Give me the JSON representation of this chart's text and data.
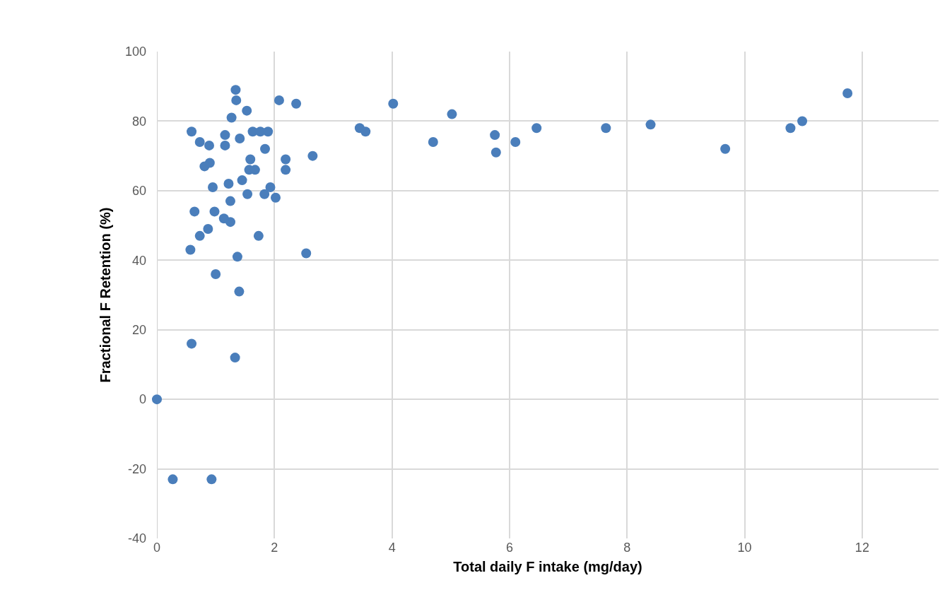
{
  "chart_data": {
    "type": "scatter",
    "xlabel": "Total daily F intake (mg/day)",
    "ylabel": "Fractional F Retention (%)",
    "x": [
      0,
      0.27,
      0.93,
      0.59,
      1.33,
      1.4,
      1.0,
      1.37,
      0.57,
      2.54,
      0.73,
      1.73,
      0.87,
      1.25,
      1.14,
      0.98,
      0.64,
      1.25,
      1.54,
      1.83,
      2.02,
      0.95,
      1.93,
      1.22,
      1.45,
      1.57,
      1.67,
      2.19,
      0.9,
      1.59,
      2.19,
      2.65,
      1.84,
      0.81,
      0.89,
      1.16,
      0.73,
      1.41,
      1.16,
      0.59,
      1.63,
      1.76,
      1.89,
      1.27,
      1.53,
      1.35,
      2.08,
      2.37,
      1.34,
      3.45,
      3.55,
      4.02,
      4.7,
      5.02,
      5.75,
      5.77,
      6.1,
      6.46,
      7.64,
      8.4,
      9.67,
      10.78,
      10.98,
      11.75
    ],
    "series": [
      {
        "color": "#4a7ebb",
        "values": [
          0,
          -23,
          -23,
          16,
          12,
          31,
          36,
          41,
          43,
          42,
          47,
          47,
          49,
          51,
          52,
          54,
          54,
          57,
          59,
          59,
          58,
          61,
          61,
          62,
          63,
          66,
          66,
          66,
          68,
          69,
          69,
          70,
          72,
          67,
          73,
          73,
          74,
          75,
          76,
          77,
          77,
          77,
          77,
          81,
          83,
          86,
          86,
          85,
          89,
          78,
          77,
          85,
          74,
          82,
          76,
          71,
          74,
          78,
          78,
          79,
          72,
          78,
          80,
          88
        ]
      }
    ],
    "xlim": [
      0,
      13.3
    ],
    "xticks": [
      0,
      2,
      4,
      6,
      8,
      10,
      12
    ],
    "ylim": [
      -40,
      100
    ],
    "yticks": [
      -40,
      -20,
      0,
      20,
      40,
      60,
      80,
      100
    ],
    "grid": true,
    "marker": "circle"
  }
}
